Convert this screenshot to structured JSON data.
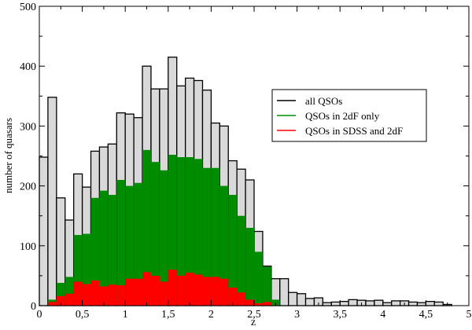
{
  "chart_data": {
    "type": "bar",
    "title": "",
    "xlabel": "z",
    "ylabel": "number of quasars",
    "xlim": [
      0,
      5
    ],
    "ylim": [
      0,
      500
    ],
    "bin_width": 0.1,
    "bin_starts": [
      0.0,
      0.1,
      0.2,
      0.3,
      0.4,
      0.5,
      0.6,
      0.7,
      0.8,
      0.9,
      1.0,
      1.1,
      1.2,
      1.3,
      1.4,
      1.5,
      1.6,
      1.7,
      1.8,
      1.9,
      2.0,
      2.1,
      2.2,
      2.3,
      2.4,
      2.5,
      2.6,
      2.7,
      2.8,
      2.9,
      3.0,
      3.1,
      3.2,
      3.3,
      3.4,
      3.5,
      3.6,
      3.7,
      3.8,
      3.9,
      4.0,
      4.1,
      4.2,
      4.3,
      4.4,
      4.5,
      4.6,
      4.7
    ],
    "x_ticks": [
      "0",
      "0,5",
      "1",
      "1,5",
      "2",
      "2,5",
      "3",
      "3,5",
      "4",
      "4,5",
      "5"
    ],
    "y_ticks": [
      "0",
      "100",
      "200",
      "300",
      "400",
      "500"
    ],
    "legend_position": "top-right",
    "series": [
      {
        "name": "all QSOs",
        "color": "#d9d9d9",
        "edge_color": "#000000",
        "values": [
          248,
          348,
          180,
          143,
          220,
          198,
          258,
          265,
          270,
          322,
          320,
          314,
          400,
          362,
          362,
          415,
          367,
          380,
          376,
          360,
          305,
          300,
          242,
          228,
          210,
          124,
          66,
          45,
          45,
          22,
          20,
          12,
          13,
          5,
          6,
          7,
          10,
          9,
          8,
          9,
          5,
          8,
          8,
          6,
          5,
          7,
          6,
          2
        ]
      },
      {
        "name": "QSOs in 2dF only",
        "color": "#008c00",
        "values": [
          0,
          10,
          38,
          48,
          118,
          120,
          180,
          192,
          185,
          210,
          200,
          205,
          260,
          240,
          226,
          252,
          248,
          248,
          245,
          230,
          230,
          200,
          185,
          150,
          130,
          90,
          65,
          10,
          0,
          0,
          0,
          0,
          0,
          0,
          0,
          0,
          0,
          0,
          0,
          0,
          0,
          0,
          0,
          0,
          0,
          0,
          0,
          0
        ]
      },
      {
        "name": "QSOs in SDSS and 2dF",
        "color": "#ff0000",
        "values": [
          0,
          6,
          16,
          20,
          40,
          36,
          42,
          32,
          35,
          34,
          45,
          45,
          56,
          50,
          40,
          60,
          50,
          55,
          52,
          48,
          48,
          45,
          30,
          22,
          10,
          4,
          6,
          0,
          0,
          0,
          0,
          0,
          0,
          0,
          0,
          0,
          0,
          0,
          0,
          0,
          0,
          0,
          0,
          0,
          0,
          0,
          0,
          0
        ]
      }
    ]
  }
}
